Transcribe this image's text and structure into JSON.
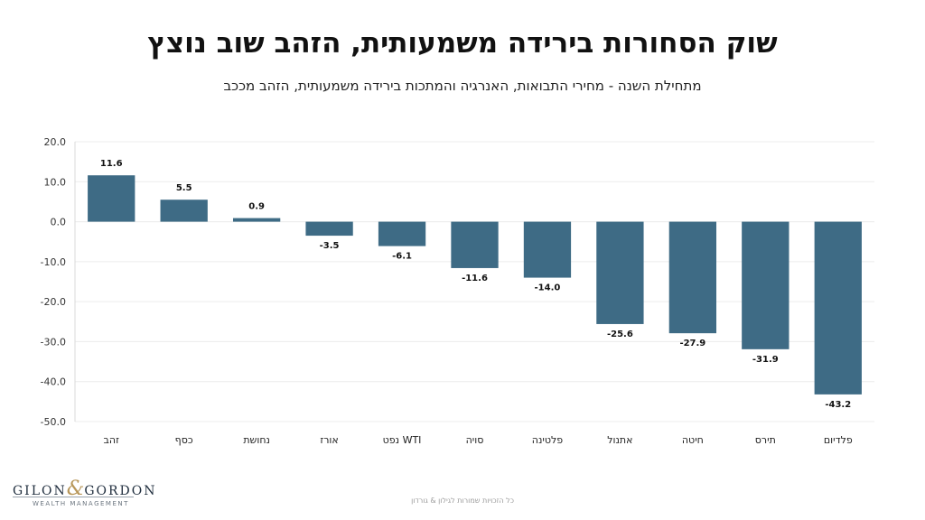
{
  "header": {
    "title": "שוק הסחורות בירידה משמעותית, הזהב שוב נוצץ",
    "subtitle": "מתחילת השנה -  מחירי התבואות, האנרגיה והמתכות בירידה משמעותית, הזהב מככב"
  },
  "chart_data": {
    "type": "bar",
    "categories": [
      "זהב",
      "כסף",
      "נחושת",
      "אורז",
      "WTI נפט",
      "סויה",
      "פלטינה",
      "אתנול",
      "חיטה",
      "תירס",
      "פלדיום"
    ],
    "values": [
      11.6,
      5.5,
      0.9,
      -3.5,
      -6.1,
      -11.6,
      -14.0,
      -25.6,
      -27.9,
      -31.9,
      -43.2
    ],
    "value_labels": [
      "11.6",
      "5.5",
      "0.9",
      "-3.5",
      "-6.1",
      "-11.6",
      "-14.0",
      "-25.6",
      "-27.9",
      "-31.9",
      "-43.2"
    ],
    "y_ticks": [
      "20.0",
      "10.0",
      "0.0",
      "-10.0",
      "-20.0",
      "-30.0",
      "-40.0",
      "-50.0"
    ],
    "ylim": [
      -50,
      20
    ],
    "grid": true,
    "bar_color": "#3e6b85",
    "title": "",
    "xlabel": "",
    "ylabel": ""
  },
  "logo": {
    "left": "GILON",
    "amp": "&",
    "right": "GORDON",
    "sub": "WEALTH MANAGEMENT",
    "accent_color": "#b8975a"
  },
  "footer": {
    "text": "כל הזכויות שמורות לגילון & גורדון"
  }
}
